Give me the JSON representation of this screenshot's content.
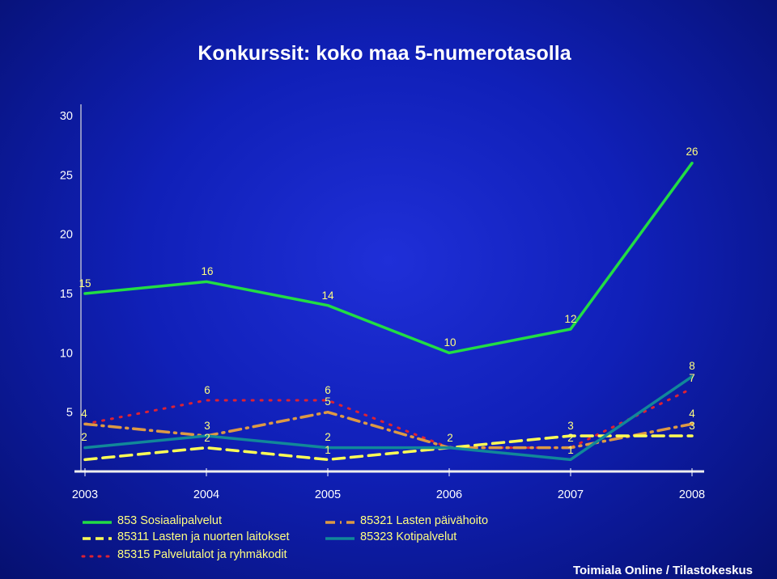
{
  "page": {
    "title": "Konkurssit: koko maa 5-numerotasolla",
    "footer": "Toimiala Online / Tilastokeskus"
  },
  "colors": {
    "title": "#ffffff",
    "axis_text": "#ffffff",
    "label_text": "#ffff80",
    "legend_text": "#ffff80"
  },
  "chart_data": {
    "type": "line",
    "title": "Konkurssit: koko maa 5-numerotasolla",
    "x": [
      "2003",
      "2004",
      "2005",
      "2006",
      "2007",
      "2008"
    ],
    "ylim": [
      0,
      30
    ],
    "yticks": [
      5,
      10,
      15,
      20,
      25,
      30
    ],
    "grid": false,
    "legend_position": "bottom",
    "series": [
      {
        "name": "853 Sosiaalipalvelut",
        "values": [
          15,
          16,
          14,
          10,
          12,
          26
        ],
        "color": "#22dd44",
        "dash": "solid"
      },
      {
        "name": "85311 Lasten ja nuorten laitokset",
        "values": [
          1,
          2,
          1,
          2,
          3,
          3
        ],
        "color": "#ffff55",
        "dash": "dashed"
      },
      {
        "name": "85315 Palvelutalot ja ryhmäkodit",
        "values": [
          4,
          6,
          6,
          2,
          2,
          7
        ],
        "color": "#dd2233",
        "dash": "dotted"
      },
      {
        "name": "85321 Lasten päivähoito",
        "values": [
          4,
          3,
          5,
          2,
          2,
          4
        ],
        "color": "#dd9944",
        "dash": "dashdot"
      },
      {
        "name": "85323 Kotipalvelut",
        "values": [
          2,
          3,
          2,
          2,
          1,
          8
        ],
        "color": "#118899",
        "dash": "solid"
      }
    ],
    "data_labels": [
      {
        "x": "2003",
        "text": "15"
      },
      {
        "x": "2004",
        "text": "16"
      },
      {
        "x": "2005",
        "text": "14"
      },
      {
        "x": "2006",
        "text": "10"
      },
      {
        "x": "2007",
        "text": "12"
      },
      {
        "x": "2008",
        "text": "26"
      },
      {
        "x": "2003",
        "text": "4"
      },
      {
        "x": "2003",
        "text": "2"
      },
      {
        "x": "2004",
        "text": "6"
      },
      {
        "x": "2004",
        "text": "3"
      },
      {
        "x": "2004",
        "text": "2"
      },
      {
        "x": "2005",
        "text": "6"
      },
      {
        "x": "2005",
        "text": "5"
      },
      {
        "x": "2005",
        "text": "2"
      },
      {
        "x": "2005",
        "text": "1"
      },
      {
        "x": "2006",
        "text": "2"
      },
      {
        "x": "2007",
        "text": "3"
      },
      {
        "x": "2007",
        "text": "2"
      },
      {
        "x": "2007",
        "text": "1"
      },
      {
        "x": "2008",
        "text": "8"
      },
      {
        "x": "2008",
        "text": "7"
      },
      {
        "x": "2008",
        "text": "4"
      },
      {
        "x": "2008",
        "text": "3"
      }
    ]
  }
}
